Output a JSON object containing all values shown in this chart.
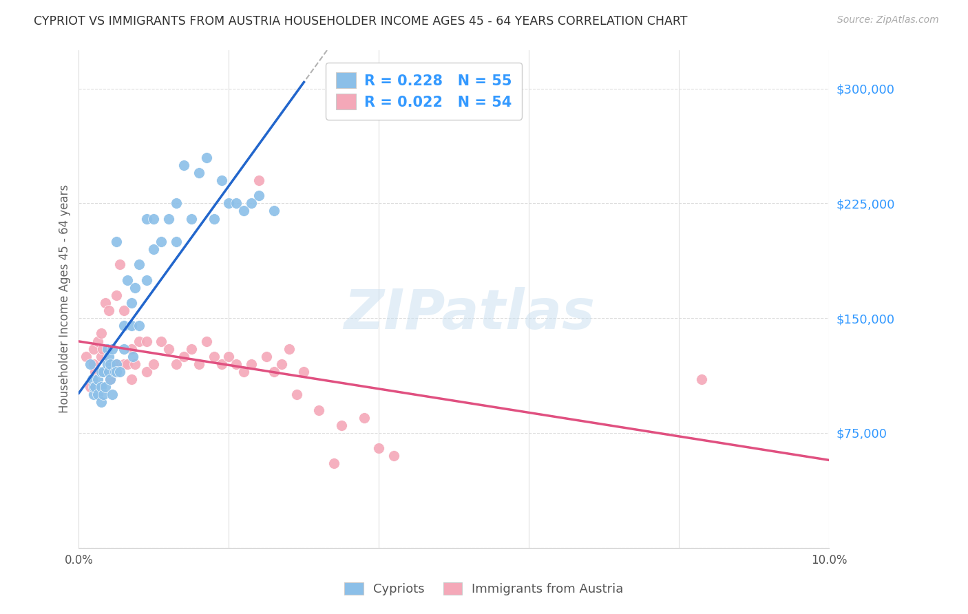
{
  "title": "CYPRIOT VS IMMIGRANTS FROM AUSTRIA HOUSEHOLDER INCOME AGES 45 - 64 YEARS CORRELATION CHART",
  "source": "Source: ZipAtlas.com",
  "ylabel": "Householder Income Ages 45 - 64 years",
  "xmin": 0.0,
  "xmax": 0.1,
  "ymin": 0,
  "ymax": 325000,
  "yticks": [
    0,
    75000,
    150000,
    225000,
    300000
  ],
  "ytick_labels": [
    "",
    "$75,000",
    "$150,000",
    "$225,000",
    "$300,000"
  ],
  "xticks": [
    0.0,
    0.02,
    0.04,
    0.06,
    0.08,
    0.1
  ],
  "xtick_labels": [
    "0.0%",
    "",
    "",
    "",
    "",
    "10.0%"
  ],
  "legend_r1": "0.228",
  "legend_n1": "55",
  "legend_r2": "0.022",
  "legend_n2": "54",
  "cypriot_color": "#8bbfe8",
  "austrian_color": "#f4a8b8",
  "trend_cypriot_color": "#2266cc",
  "trend_austrian_color": "#e05080",
  "trend_dashed_color": "#aaaaaa",
  "cypriot_x": [
    0.0015,
    0.0018,
    0.002,
    0.002,
    0.0022,
    0.0025,
    0.0025,
    0.003,
    0.003,
    0.003,
    0.0033,
    0.0033,
    0.0035,
    0.0038,
    0.0038,
    0.004,
    0.004,
    0.0042,
    0.0042,
    0.0045,
    0.0045,
    0.0048,
    0.005,
    0.005,
    0.005,
    0.0055,
    0.006,
    0.006,
    0.0065,
    0.007,
    0.007,
    0.0072,
    0.0075,
    0.008,
    0.008,
    0.009,
    0.009,
    0.01,
    0.01,
    0.011,
    0.012,
    0.013,
    0.013,
    0.014,
    0.015,
    0.016,
    0.017,
    0.018,
    0.019,
    0.02,
    0.021,
    0.022,
    0.023,
    0.024,
    0.026
  ],
  "cypriot_y": [
    120000,
    110000,
    100000,
    105000,
    105000,
    100000,
    110000,
    95000,
    105000,
    115000,
    100000,
    115000,
    105000,
    120000,
    130000,
    115000,
    125000,
    110000,
    120000,
    130000,
    100000,
    115000,
    120000,
    115000,
    200000,
    115000,
    130000,
    145000,
    175000,
    145000,
    160000,
    125000,
    170000,
    145000,
    185000,
    215000,
    175000,
    195000,
    215000,
    200000,
    215000,
    200000,
    225000,
    250000,
    215000,
    245000,
    255000,
    215000,
    240000,
    225000,
    225000,
    220000,
    225000,
    230000,
    220000
  ],
  "austrian_x": [
    0.001,
    0.0015,
    0.002,
    0.002,
    0.0022,
    0.0025,
    0.003,
    0.003,
    0.0032,
    0.0035,
    0.0038,
    0.004,
    0.0042,
    0.0045,
    0.005,
    0.005,
    0.0055,
    0.006,
    0.006,
    0.0065,
    0.007,
    0.007,
    0.0075,
    0.008,
    0.009,
    0.009,
    0.01,
    0.011,
    0.012,
    0.013,
    0.014,
    0.015,
    0.016,
    0.017,
    0.018,
    0.019,
    0.02,
    0.021,
    0.022,
    0.023,
    0.024,
    0.025,
    0.026,
    0.027,
    0.028,
    0.029,
    0.03,
    0.032,
    0.034,
    0.035,
    0.038,
    0.04,
    0.042,
    0.083
  ],
  "austrian_y": [
    125000,
    105000,
    130000,
    120000,
    115000,
    135000,
    125000,
    140000,
    130000,
    160000,
    115000,
    155000,
    110000,
    120000,
    165000,
    120000,
    185000,
    120000,
    155000,
    120000,
    110000,
    130000,
    120000,
    135000,
    135000,
    115000,
    120000,
    135000,
    130000,
    120000,
    125000,
    130000,
    120000,
    135000,
    125000,
    120000,
    125000,
    120000,
    115000,
    120000,
    240000,
    125000,
    115000,
    120000,
    130000,
    100000,
    115000,
    90000,
    55000,
    80000,
    85000,
    65000,
    60000,
    110000
  ]
}
